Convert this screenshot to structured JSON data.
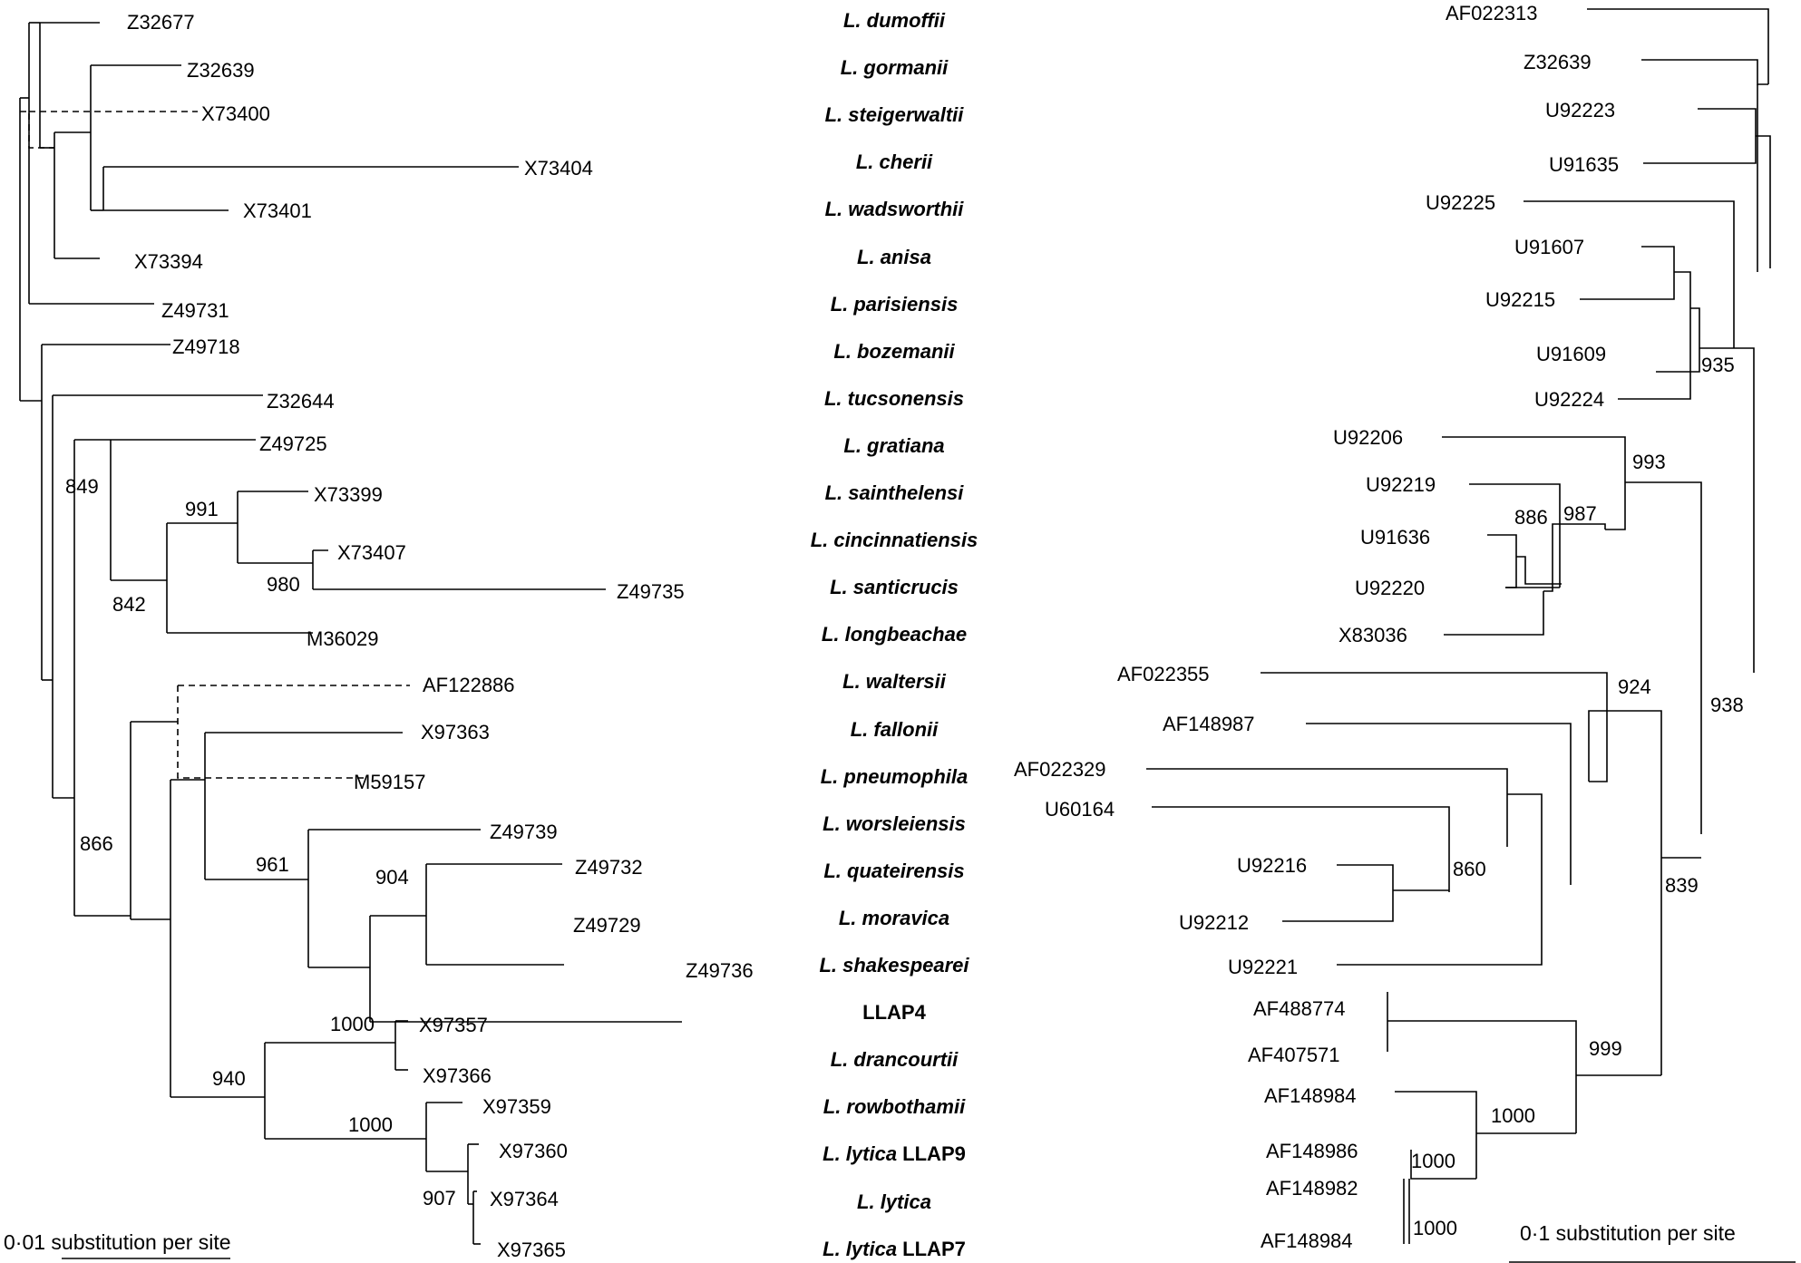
{
  "left_tree": {
    "accessions": [
      "Z32677",
      "Z32639",
      "X73400",
      "X73404",
      "X73401",
      "X73394",
      "Z49731",
      "Z49718",
      "Z32644",
      "Z49725",
      "X73399",
      "X73407",
      "Z49735",
      "M36029",
      "AF122886",
      "X97363",
      "M59157",
      "Z49739",
      "Z49732",
      "Z49729",
      "Z49736",
      "X97357",
      "X97366",
      "X97359",
      "X97360",
      "X97364",
      "X97365"
    ],
    "bootstrap": [
      "849",
      "991",
      "980",
      "842",
      "866",
      "961",
      "904",
      "940",
      "1000",
      "1000",
      "907"
    ],
    "scale_label": "0·01 substitution per site"
  },
  "species": [
    {
      "italic": "L. dumoffii",
      "plain": ""
    },
    {
      "italic": "L. gormanii",
      "plain": ""
    },
    {
      "italic": "L. steigerwaltii",
      "plain": ""
    },
    {
      "italic": "L. cherii",
      "plain": ""
    },
    {
      "italic": "L. wadsworthii",
      "plain": ""
    },
    {
      "italic": "L. anisa",
      "plain": ""
    },
    {
      "italic": "L. parisiensis",
      "plain": ""
    },
    {
      "italic": "L. bozemanii",
      "plain": ""
    },
    {
      "italic": "L. tucsonensis",
      "plain": ""
    },
    {
      "italic": "L. gratiana",
      "plain": ""
    },
    {
      "italic": "L. sainthelensi",
      "plain": ""
    },
    {
      "italic": "L. cincinnatiensis",
      "plain": ""
    },
    {
      "italic": "L. santicrucis",
      "plain": ""
    },
    {
      "italic": "L. longbeachae",
      "plain": ""
    },
    {
      "italic": "L. waltersii",
      "plain": ""
    },
    {
      "italic": "L. fallonii",
      "plain": ""
    },
    {
      "italic": "L. pneumophila",
      "plain": ""
    },
    {
      "italic": "L. worsleiensis",
      "plain": ""
    },
    {
      "italic": "L. quateirensis",
      "plain": ""
    },
    {
      "italic": "L. moravica",
      "plain": ""
    },
    {
      "italic": "L. shakespearei",
      "plain": ""
    },
    {
      "italic": "",
      "plain": "LLAP4"
    },
    {
      "italic": "L. drancourtii",
      "plain": ""
    },
    {
      "italic": "L. rowbothamii",
      "plain": ""
    },
    {
      "italic": "L. lytica",
      "plain": " LLAP9"
    },
    {
      "italic": "L. lytica",
      "plain": ""
    },
    {
      "italic": "L. lytica",
      "plain": " LLAP7"
    }
  ],
  "right_tree": {
    "accessions": [
      "AF022313",
      "Z32639",
      "U92223",
      "U91635",
      "U92225",
      "U91607",
      "U92215",
      "U91609",
      "U92224",
      "U92206",
      "U92219",
      "U91636",
      "U92220",
      "X83036",
      "AF022355",
      "AF148987",
      "AF022329",
      "U60164",
      "U92216",
      "U92212",
      "U92221",
      "AF488774",
      "AF407571",
      "AF148984",
      "AF148986",
      "AF148982",
      "AF148984"
    ],
    "bootstrap": [
      "935",
      "993",
      "886",
      "987",
      "924",
      "938",
      "860",
      "839",
      "999",
      "1000",
      "1000",
      "1000"
    ],
    "scale_label": "0·1 substitution per site"
  }
}
